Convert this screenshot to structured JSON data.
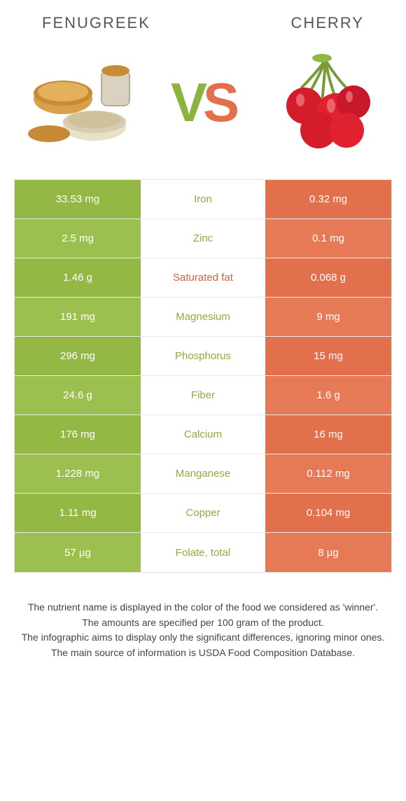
{
  "title_left": "Fenugreek",
  "title_right": "Cherry",
  "colors": {
    "left": "#93b944",
    "right": "#e2704c",
    "row_alt_left": "#9cc04f",
    "row_alt_right": "#e67a57",
    "mid_text_left": "#8aad3f",
    "mid_text_right": "#d2603e"
  },
  "rows": [
    {
      "left": "33.53 mg",
      "mid": "Iron",
      "right": "0.32 mg",
      "winner": "left"
    },
    {
      "left": "2.5 mg",
      "mid": "Zinc",
      "right": "0.1 mg",
      "winner": "left"
    },
    {
      "left": "1.46 g",
      "mid": "Saturated fat",
      "right": "0.068 g",
      "winner": "right"
    },
    {
      "left": "191 mg",
      "mid": "Magnesium",
      "right": "9 mg",
      "winner": "left"
    },
    {
      "left": "296 mg",
      "mid": "Phosphorus",
      "right": "15 mg",
      "winner": "left"
    },
    {
      "left": "24.6 g",
      "mid": "Fiber",
      "right": "1.6 g",
      "winner": "left"
    },
    {
      "left": "176 mg",
      "mid": "Calcium",
      "right": "16 mg",
      "winner": "left"
    },
    {
      "left": "1.228 mg",
      "mid": "Manganese",
      "right": "0.112 mg",
      "winner": "left"
    },
    {
      "left": "1.11 mg",
      "mid": "Copper",
      "right": "0.104 mg",
      "winner": "left"
    },
    {
      "left": "57 µg",
      "mid": "Folate, total",
      "right": "8 µg",
      "winner": "left"
    }
  ],
  "footer": [
    "The nutrient name is displayed in the color of the food we considered as 'winner'.",
    "The amounts are specified per 100 gram of the product.",
    "The infographic aims to display only the significant differences, ignoring minor ones.",
    "The main source of information is USDA Food Composition Database."
  ]
}
